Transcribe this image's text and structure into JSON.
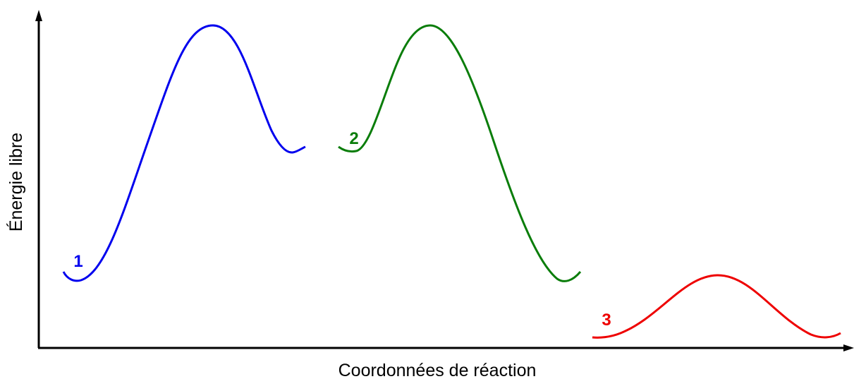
{
  "y_axis_label": "Énergie libre",
  "x_axis_label": "Coordonnées de réaction",
  "curves": [
    {
      "label": "1"
    },
    {
      "label": "2"
    },
    {
      "label": "3"
    }
  ]
}
